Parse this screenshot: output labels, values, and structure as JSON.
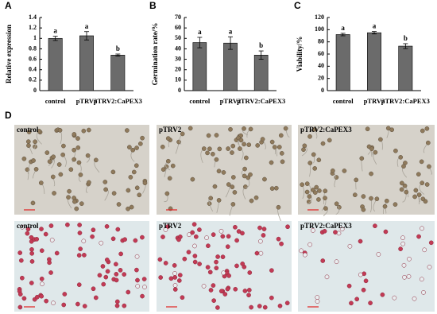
{
  "chart_data": [
    {
      "type": "bar",
      "panel": "A",
      "ylabel": "Relative expression",
      "categories": [
        "control",
        "pTRV2",
        "pTRV2:CaPEX3"
      ],
      "values": [
        1.0,
        1.05,
        0.68
      ],
      "errors": [
        0.04,
        0.08,
        0.02
      ],
      "annotations": [
        "a",
        "a",
        "b"
      ],
      "color": "#6b6b6b",
      "ylim": [
        0,
        1.4
      ],
      "yticks": [
        0,
        0.2,
        0.4,
        0.6,
        0.8,
        1,
        1.2,
        1.4
      ]
    },
    {
      "type": "bar",
      "panel": "B",
      "ylabel": "Germination rate/%",
      "categories": [
        "control",
        "pTRV2",
        "pTRV2:CaPEX3"
      ],
      "values": [
        46,
        45.5,
        34
      ],
      "errors": [
        5,
        6,
        4
      ],
      "annotations": [
        "a",
        "a",
        "b"
      ],
      "color": "#6b6b6b",
      "ylim": [
        0,
        70
      ],
      "yticks": [
        0,
        10,
        20,
        30,
        40,
        50,
        60,
        70
      ]
    },
    {
      "type": "bar",
      "panel": "C",
      "ylabel": "Viability/%",
      "categories": [
        "control",
        "pTRV2",
        "pTRV2:CaPEX3"
      ],
      "values": [
        92,
        95,
        73
      ],
      "errors": [
        2,
        2,
        4
      ],
      "annotations": [
        "a",
        "a",
        "b"
      ],
      "color": "#6b6b6b",
      "ylim": [
        0,
        120
      ],
      "yticks": [
        0,
        20,
        40,
        60,
        80,
        100,
        120
      ]
    }
  ],
  "panel_d": {
    "label": "D",
    "images": [
      {
        "label": "control"
      },
      {
        "label": "pTRV2"
      },
      {
        "label": "pTRV2:CaPEX3"
      },
      {
        "label": "control"
      },
      {
        "label": "pTRV2"
      },
      {
        "label": "pTRV2:CaPEX3"
      }
    ]
  }
}
